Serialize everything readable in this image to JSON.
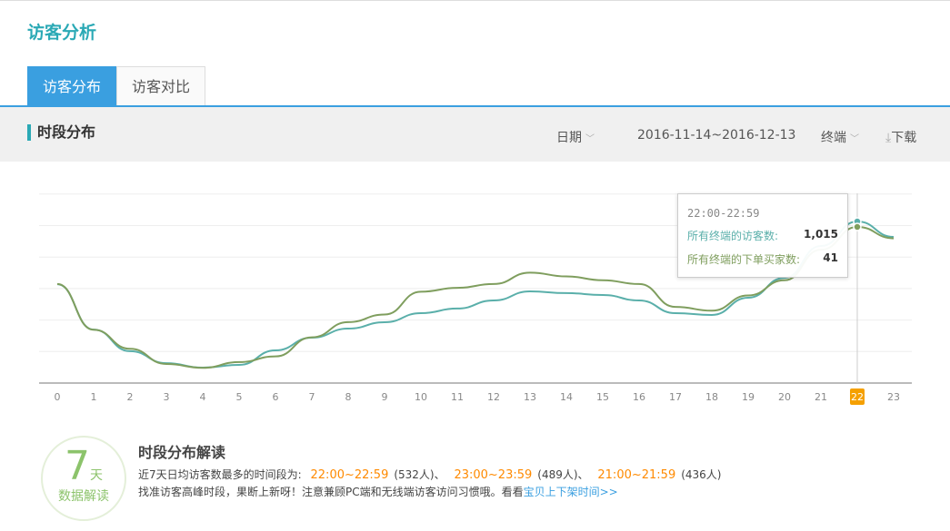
{
  "page_title": "访客分析",
  "tabs": [
    {
      "label": "访客分布",
      "active": true
    },
    {
      "label": "访客对比",
      "active": false
    }
  ],
  "section": {
    "title": "时段分布",
    "date_label": "日期",
    "date_range": "2016-11-14~2016-12-13",
    "terminal_label": "终端",
    "download_label": "下载"
  },
  "chart_data": {
    "type": "line",
    "categories": [
      "0",
      "1",
      "2",
      "3",
      "4",
      "5",
      "6",
      "7",
      "8",
      "9",
      "10",
      "11",
      "12",
      "13",
      "14",
      "15",
      "16",
      "17",
      "18",
      "19",
      "20",
      "21",
      "22",
      "23"
    ],
    "highlight_category": "22",
    "grid": true,
    "series": [
      {
        "name": "所有终端的访客数",
        "color": "#5aafaa",
        "values": [
          621,
          336,
          200,
          125,
          97,
          114,
          205,
          285,
          342,
          382,
          439,
          468,
          519,
          576,
          565,
          553,
          519,
          439,
          428,
          536,
          661,
          861,
          1015,
          918
        ]
      },
      {
        "name": "所有终端的下单买家数",
        "color": "#7f9e5e",
        "values": [
          26,
          14,
          9,
          5,
          4,
          5.5,
          7,
          12,
          16,
          18,
          24,
          25,
          26,
          29,
          28,
          27,
          26,
          20,
          19,
          23,
          27,
          35,
          41,
          38
        ]
      }
    ]
  },
  "tooltip": {
    "time": "22:00-22:59",
    "visitors_label": "所有终端的访客数:",
    "visitors_value": "1,015",
    "buyers_label": "所有终端的下单买家数:",
    "buyers_value": "41"
  },
  "insight": {
    "badge_number": "7",
    "badge_unit": "天",
    "badge_text": "数据解读",
    "title": "时段分布解读",
    "line1_prefix": "近7天日均访客数最多的时间段为:",
    "peaks": [
      {
        "time": "22:00~22:59",
        "count": "(532人)、"
      },
      {
        "time": "23:00~23:59",
        "count": "(489人)、"
      },
      {
        "time": "21:00~21:59",
        "count": "(436人)"
      }
    ],
    "line2_text": "找准访客高峰时段，果断上新呀！注意兼顾PC端和无线端访客访问习惯哦。看看",
    "line2_link": "宝贝上下架时间>>"
  }
}
